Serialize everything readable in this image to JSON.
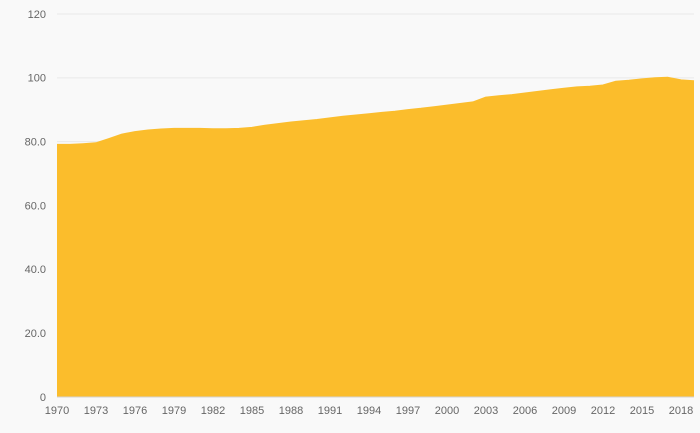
{
  "background_color": "#f9f9f9",
  "chart_data": {
    "type": "area",
    "title": "",
    "xlabel": "",
    "ylabel": "",
    "series_name": "value",
    "series_color": "#fbbd2c",
    "grid": true,
    "legend": "none",
    "xlim": [
      1970,
      2019
    ],
    "ylim": [
      0,
      120
    ],
    "yticks": [
      0,
      20,
      40,
      60,
      80,
      100,
      120
    ],
    "ytick_labels": [
      "0",
      "20.0",
      "40.0",
      "60.0",
      "80.0",
      "100",
      "120"
    ],
    "xticks": [
      1970,
      1973,
      1976,
      1979,
      1982,
      1985,
      1988,
      1991,
      1994,
      1997,
      2000,
      2003,
      2006,
      2009,
      2012,
      2015,
      2018
    ],
    "xtick_labels": [
      "1970",
      "1973",
      "1976",
      "1979",
      "1982",
      "1985",
      "1988",
      "1991",
      "1994",
      "1997",
      "2000",
      "2003",
      "2006",
      "2009",
      "2012",
      "2015",
      "2018"
    ],
    "x": [
      1970,
      1971,
      1972,
      1973,
      1974,
      1975,
      1976,
      1977,
      1978,
      1979,
      1980,
      1981,
      1982,
      1983,
      1984,
      1985,
      1986,
      1987,
      1988,
      1989,
      1990,
      1991,
      1992,
      1993,
      1994,
      1995,
      1996,
      1997,
      1998,
      1999,
      2000,
      2001,
      2002,
      2003,
      2004,
      2005,
      2006,
      2007,
      2008,
      2009,
      2010,
      2011,
      2012,
      2013,
      2014,
      2015,
      2016,
      2017,
      2018,
      2019
    ],
    "values": [
      79.0,
      79.0,
      79.2,
      79.5,
      80.8,
      82.2,
      83.0,
      83.5,
      83.8,
      84.0,
      84.0,
      84.0,
      83.9,
      83.9,
      84.0,
      84.3,
      85.0,
      85.5,
      86.0,
      86.4,
      86.8,
      87.3,
      87.8,
      88.2,
      88.6,
      89.0,
      89.4,
      89.9,
      90.3,
      90.8,
      91.3,
      91.8,
      92.3,
      93.8,
      94.2,
      94.6,
      95.1,
      95.6,
      96.1,
      96.6,
      97.0,
      97.2,
      97.6,
      98.8,
      99.1,
      99.5,
      99.9,
      100.0,
      99.2,
      98.9
    ],
    "gridline_color": "#e9e9e9",
    "axis_line_color": "#d4d4d4",
    "tick_label_color": "#666666"
  }
}
